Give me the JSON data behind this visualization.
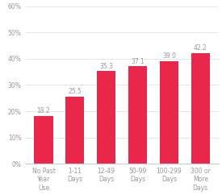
{
  "categories": [
    "No Past\nYear\nUse",
    "1-11\nDays",
    "12-49\nDays",
    "50-99\nDays",
    "100-299\nDays",
    "300 or\nMore\nDays"
  ],
  "values": [
    18.2,
    25.5,
    35.3,
    37.1,
    39.0,
    42.2
  ],
  "bar_color": "#e8274b",
  "ylim": [
    0,
    60
  ],
  "yticks": [
    0,
    10,
    20,
    30,
    40,
    50,
    60
  ],
  "ytick_labels": [
    "0%",
    "10%",
    "20%",
    "30%",
    "40%",
    "50%",
    "60%"
  ],
  "value_label_color": "#999999",
  "value_label_fontsize": 5.5,
  "tick_label_fontsize": 5.5,
  "ytick_fontsize": 5.5,
  "background_color": "#ffffff",
  "grid_color": "#dddddd",
  "spine_color": "#cccccc"
}
